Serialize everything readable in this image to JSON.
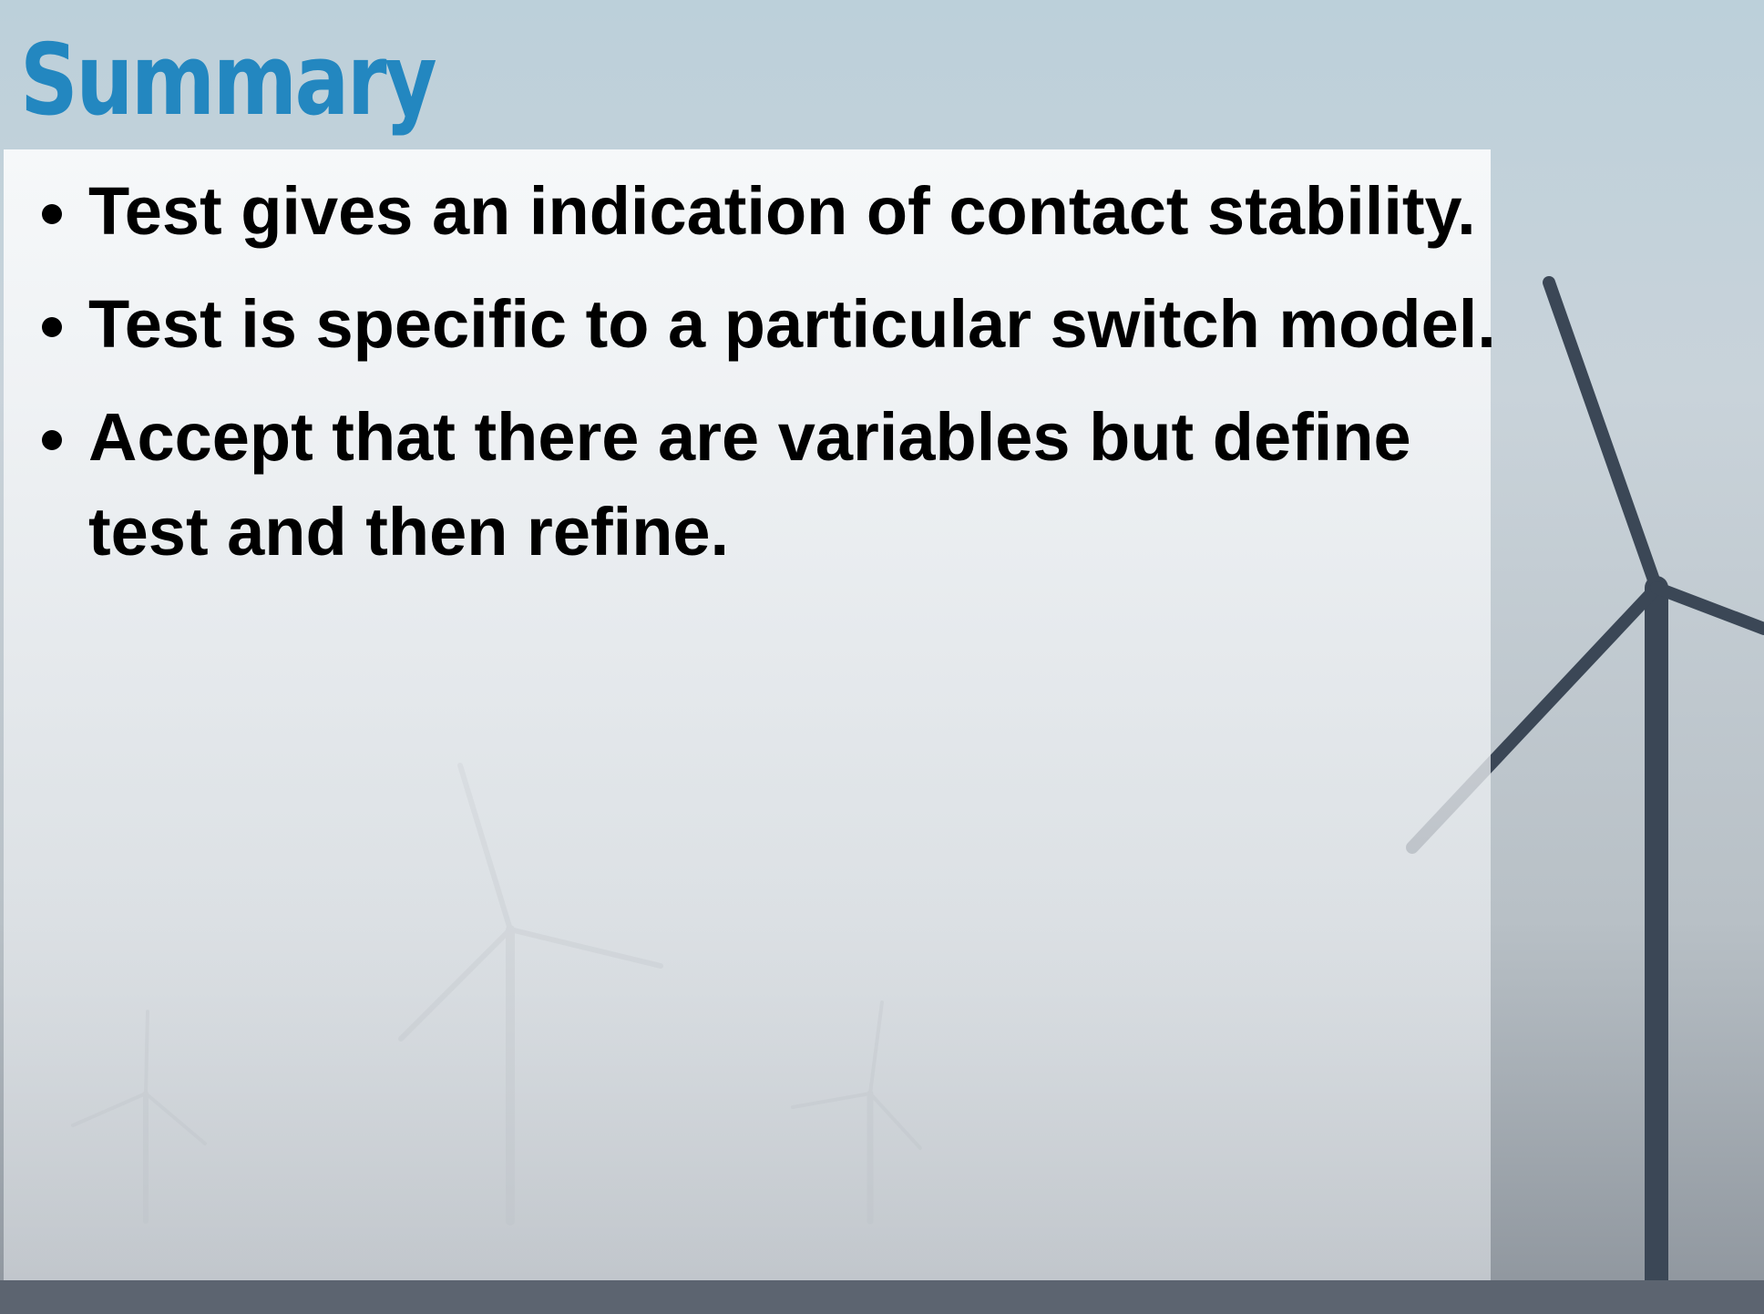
{
  "header": {
    "title": "Summary"
  },
  "bullets": [
    "Test gives an indication of contact stability.",
    "Test is specific to a particular switch model.",
    "Accept that there are variables but define test and then refine."
  ]
}
